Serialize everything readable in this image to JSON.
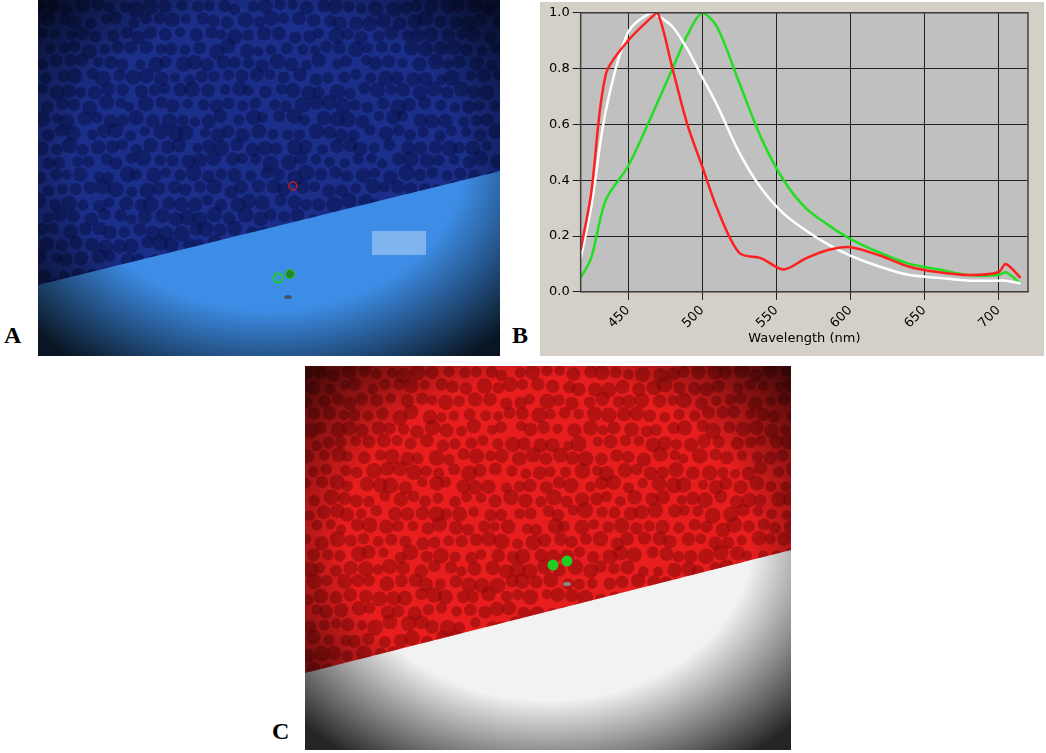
{
  "panel_labels": [
    "A",
    "B",
    "C"
  ],
  "chart_data": {
    "type": "line",
    "x_label": "Wavelength (nm)",
    "x": [
      418,
      425,
      435,
      450,
      465,
      470,
      480,
      490,
      500,
      510,
      525,
      540,
      555,
      570,
      585,
      600,
      620,
      640,
      660,
      680,
      700,
      705,
      715
    ],
    "series": [
      {
        "color": "#ff2020",
        "values": [
          0.15,
          0.35,
          0.78,
          0.9,
          0.98,
          1.0,
          0.8,
          0.6,
          0.45,
          0.3,
          0.14,
          0.12,
          0.08,
          0.12,
          0.15,
          0.16,
          0.13,
          0.09,
          0.07,
          0.06,
          0.07,
          0.1,
          0.05
        ]
      },
      {
        "color": "#ffffff",
        "values": [
          0.12,
          0.3,
          0.65,
          0.93,
          1.0,
          0.99,
          0.95,
          0.87,
          0.77,
          0.67,
          0.5,
          0.37,
          0.28,
          0.22,
          0.17,
          0.13,
          0.09,
          0.06,
          0.05,
          0.04,
          0.04,
          0.04,
          0.03
        ]
      },
      {
        "color": "#22dd22",
        "values": [
          0.05,
          0.12,
          0.33,
          0.45,
          0.62,
          0.68,
          0.8,
          0.92,
          1.0,
          0.95,
          0.75,
          0.55,
          0.4,
          0.3,
          0.24,
          0.19,
          0.14,
          0.1,
          0.08,
          0.06,
          0.06,
          0.07,
          0.03
        ]
      }
    ],
    "xlim": [
      418,
      720
    ],
    "xticks": [
      450,
      500,
      550,
      600,
      650,
      700
    ],
    "ylim": [
      0,
      1
    ],
    "yticks": [
      {
        "value": 0,
        "label": "0.0"
      },
      {
        "value": 0.2,
        "label": "0.2"
      },
      {
        "value": 0.4,
        "label": "0.4"
      },
      {
        "value": 0.6,
        "label": "0.6"
      },
      {
        "value": 0.8,
        "label": "0.8"
      },
      {
        "value": 1,
        "label": "1.0"
      }
    ],
    "grid": true
  }
}
